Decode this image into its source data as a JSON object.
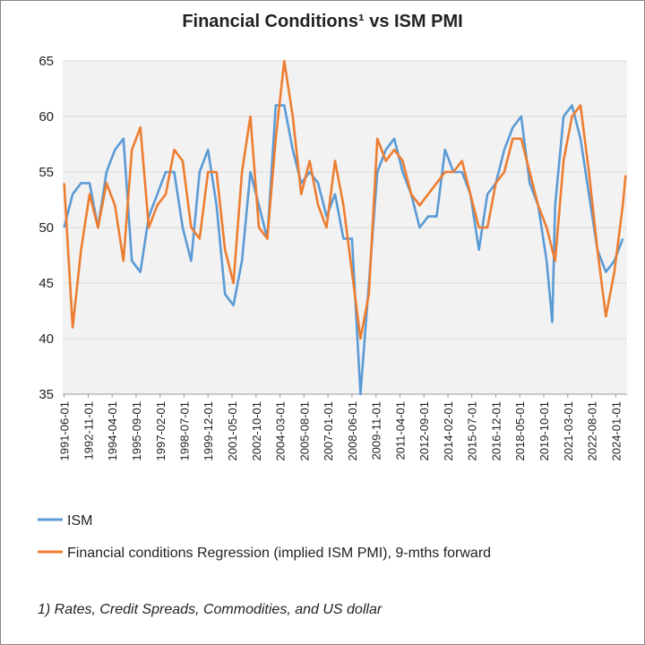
{
  "chart_data": {
    "type": "line",
    "title": "Financial Conditions¹ vs ISM PMI",
    "x": [
      "1991-06-01",
      "1991-12-01",
      "1992-06-01",
      "1992-12-01",
      "1993-06-01",
      "1993-12-01",
      "1994-06-01",
      "1994-12-01",
      "1995-06-01",
      "1995-12-01",
      "1996-06-01",
      "1996-12-01",
      "1997-06-01",
      "1997-12-01",
      "1998-06-01",
      "1998-12-01",
      "1999-06-01",
      "1999-12-01",
      "2000-06-01",
      "2000-12-01",
      "2001-06-01",
      "2001-12-01",
      "2002-06-01",
      "2002-12-01",
      "2003-06-01",
      "2003-12-01",
      "2004-06-01",
      "2004-12-01",
      "2005-06-01",
      "2005-12-01",
      "2006-06-01",
      "2006-12-01",
      "2007-06-01",
      "2007-12-01",
      "2008-06-01",
      "2008-12-01",
      "2009-06-01",
      "2009-12-01",
      "2010-06-01",
      "2010-12-01",
      "2011-06-01",
      "2011-12-01",
      "2012-06-01",
      "2012-12-01",
      "2013-06-01",
      "2013-12-01",
      "2014-06-01",
      "2014-12-01",
      "2015-06-01",
      "2015-12-01",
      "2016-06-01",
      "2016-12-01",
      "2017-06-01",
      "2017-12-01",
      "2018-06-01",
      "2018-12-01",
      "2019-06-01",
      "2019-12-01",
      "2020-04-01",
      "2020-06-01",
      "2020-12-01",
      "2021-06-01",
      "2021-12-01",
      "2022-06-01",
      "2022-12-01",
      "2023-06-01",
      "2023-12-01",
      "2024-06-01",
      "2024-08-01"
    ],
    "series": [
      {
        "name": "ISM",
        "color": "#5b9bd5",
        "values": [
          50,
          53,
          54,
          54,
          50,
          55,
          57,
          58,
          47,
          46,
          51,
          53,
          55,
          55,
          50,
          47,
          55,
          57,
          52,
          44,
          43,
          47,
          55,
          52,
          49,
          61,
          61,
          57,
          54,
          55,
          54,
          51,
          53,
          49,
          49,
          35,
          45,
          55,
          57,
          58,
          55,
          53,
          50,
          51,
          51,
          57,
          55,
          55,
          53,
          48,
          53,
          54,
          57,
          59,
          60,
          54,
          52,
          47,
          41.5,
          52,
          60,
          61,
          58,
          53,
          48,
          46,
          47,
          49,
          null
        ]
      },
      {
        "name": "Financial conditions Regression (implied ISM PMI), 9-mths forward",
        "color": "#ed7d31",
        "values": [
          54,
          41,
          48,
          53,
          50,
          54,
          52,
          47,
          57,
          59,
          50,
          52,
          53,
          57,
          56,
          50,
          49,
          55,
          55,
          48,
          45,
          55,
          60,
          50,
          49,
          58,
          65,
          60,
          53,
          56,
          52,
          50,
          56,
          52,
          46,
          40,
          44,
          58,
          56,
          57,
          56,
          53,
          52,
          53,
          54,
          55,
          55,
          56,
          53,
          50,
          50,
          54,
          55,
          58,
          58,
          55,
          52,
          50,
          48,
          47,
          56,
          60,
          61,
          55,
          48,
          42,
          46,
          52,
          54.7
        ]
      }
    ],
    "xlim": [
      "1991-05-01",
      "2024-09-01"
    ],
    "xticks": [
      "1991-06-01",
      "1992-11-01",
      "1994-04-01",
      "1995-09-01",
      "1997-02-01",
      "1998-07-01",
      "1999-12-01",
      "2001-05-01",
      "2002-10-01",
      "2004-03-01",
      "2005-08-01",
      "2007-01-01",
      "2008-06-01",
      "2009-11-01",
      "2011-04-01",
      "2012-09-01",
      "2014-02-01",
      "2015-07-01",
      "2016-12-01",
      "2018-05-01",
      "2019-10-01",
      "2021-03-01",
      "2022-08-01",
      "2024-01-01"
    ],
    "ylim": [
      35,
      65
    ],
    "yticks": [
      35,
      40,
      45,
      50,
      55,
      60,
      65
    ],
    "grid": true,
    "footnote": "1) Rates, Credit Spreads, Commodities, and US dollar"
  }
}
